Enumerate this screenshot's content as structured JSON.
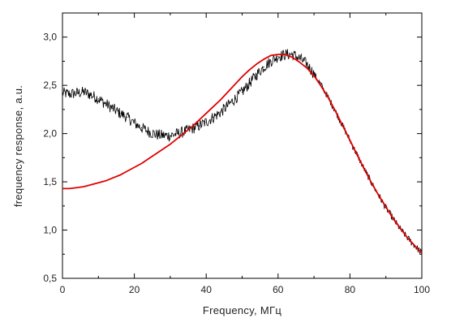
{
  "chart_data": {
    "type": "line",
    "title": "",
    "xlabel": "Frequency, МГц",
    "ylabel": "frequency response, a.u.",
    "xlim": [
      0,
      100
    ],
    "ylim": [
      0.5,
      3.25
    ],
    "xticks": [
      0,
      20,
      40,
      60,
      80,
      100
    ],
    "yticks": [
      0.5,
      1.0,
      1.5,
      2.0,
      2.5,
      3.0
    ],
    "xtick_labels": [
      "0",
      "20",
      "40",
      "60",
      "80",
      "100"
    ],
    "ytick_labels": [
      "0,5",
      "1,0",
      "1,5",
      "2,0",
      "2,5",
      "3,0"
    ],
    "grid": false,
    "legend": "none",
    "series": [
      {
        "color": "#000000",
        "style": "noisy measured data",
        "x": [
          0,
          2,
          4,
          6,
          8,
          10,
          12,
          14,
          16,
          18,
          20,
          22,
          24,
          26,
          28,
          30,
          32,
          34,
          36,
          38,
          40,
          42,
          44,
          46,
          48,
          50,
          52,
          54,
          56,
          58,
          60,
          62,
          64,
          66,
          68,
          70,
          72,
          74,
          76,
          78,
          80,
          82,
          84,
          86,
          88,
          90,
          92,
          94,
          96,
          98,
          100
        ],
        "values": [
          2.42,
          2.41,
          2.42,
          2.43,
          2.4,
          2.36,
          2.31,
          2.26,
          2.21,
          2.17,
          2.11,
          2.06,
          2.02,
          1.99,
          1.98,
          1.98,
          2.0,
          2.02,
          2.05,
          2.08,
          2.12,
          2.17,
          2.22,
          2.29,
          2.36,
          2.43,
          2.52,
          2.61,
          2.69,
          2.75,
          2.8,
          2.82,
          2.82,
          2.78,
          2.72,
          2.62,
          2.5,
          2.37,
          2.23,
          2.08,
          1.93,
          1.78,
          1.63,
          1.49,
          1.36,
          1.23,
          1.12,
          1.01,
          0.92,
          0.84,
          0.76
        ]
      },
      {
        "color": "#e00000",
        "style": "smooth fit",
        "x": [
          0,
          2,
          4,
          6,
          8,
          10,
          12,
          14,
          16,
          18,
          20,
          22,
          24,
          26,
          28,
          30,
          32,
          34,
          36,
          38,
          40,
          42,
          44,
          46,
          48,
          50,
          52,
          54,
          56,
          58,
          60,
          62,
          64,
          66,
          68,
          70,
          72,
          74,
          76,
          78,
          80,
          82,
          84,
          86,
          88,
          90,
          92,
          94,
          96,
          98,
          100
        ],
        "values": [
          1.43,
          1.43,
          1.44,
          1.45,
          1.47,
          1.49,
          1.51,
          1.54,
          1.57,
          1.61,
          1.65,
          1.69,
          1.74,
          1.79,
          1.84,
          1.89,
          1.95,
          2.01,
          2.07,
          2.14,
          2.21,
          2.28,
          2.35,
          2.43,
          2.51,
          2.59,
          2.66,
          2.72,
          2.77,
          2.81,
          2.82,
          2.82,
          2.79,
          2.74,
          2.68,
          2.6,
          2.49,
          2.37,
          2.23,
          2.08,
          1.93,
          1.78,
          1.63,
          1.49,
          1.36,
          1.24,
          1.12,
          1.02,
          0.92,
          0.84,
          0.76
        ]
      }
    ]
  }
}
